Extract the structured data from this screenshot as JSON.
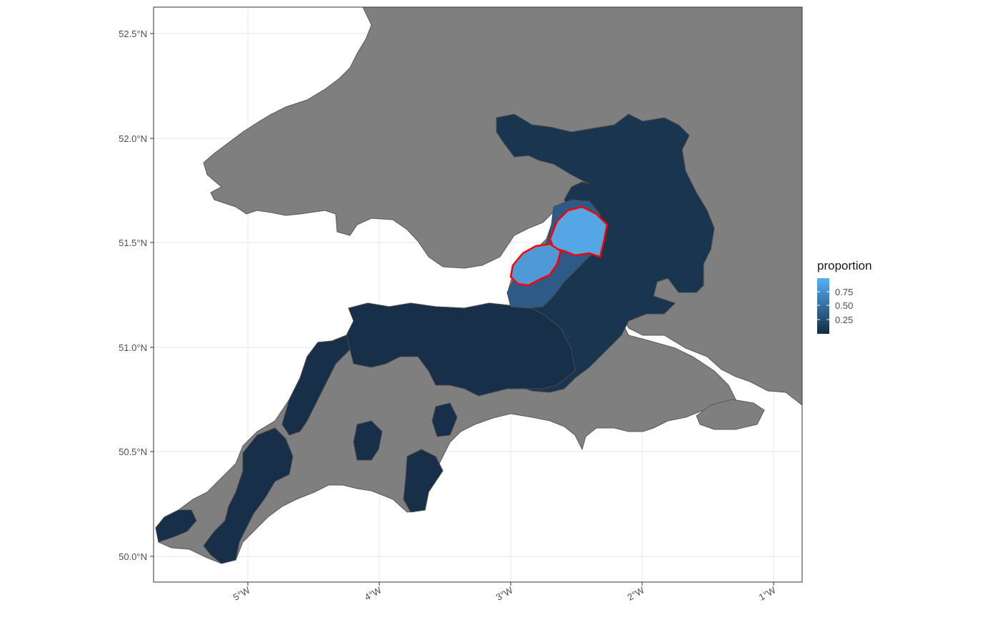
{
  "axes": {
    "y_ticks": [
      "52.5°N",
      "52.0°N",
      "51.5°N",
      "51.0°N",
      "50.5°N",
      "50.0°N"
    ],
    "x_ticks": [
      "5°W",
      "4°W",
      "3°W",
      "2°W",
      "1°W"
    ]
  },
  "legend": {
    "title": "proportion",
    "labels": [
      "0.75",
      "0.50",
      "0.25"
    ],
    "gradient_low": "#132b43",
    "gradient_high": "#56b1f7"
  },
  "colors": {
    "land": "#7f7f7f",
    "borders": "#595959",
    "highlight_outline": "#ff0000",
    "grid": "#ebebeb",
    "panel_border": "#333333"
  }
}
